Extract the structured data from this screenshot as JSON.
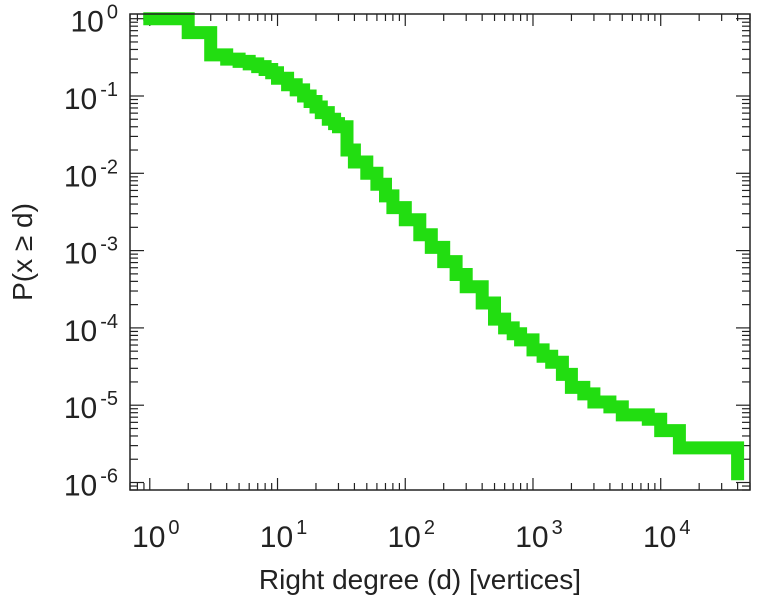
{
  "chart_data": {
    "type": "line",
    "title": "",
    "xlabel": "Right degree (d) [vertices]",
    "ylabel": "P(x ≥ d)",
    "x_scale": "log",
    "y_scale": "log",
    "xlim": [
      0.7,
      50000
    ],
    "ylim": [
      8e-07,
      1.15
    ],
    "grid": false,
    "legend": "none",
    "x_ticks": [
      {
        "base": "10",
        "exp": "0",
        "value": 1
      },
      {
        "base": "10",
        "exp": "1",
        "value": 10
      },
      {
        "base": "10",
        "exp": "2",
        "value": 100
      },
      {
        "base": "10",
        "exp": "3",
        "value": 1000
      },
      {
        "base": "10",
        "exp": "4",
        "value": 10000
      }
    ],
    "y_ticks": [
      {
        "base": "10",
        "exp": "0",
        "value": 1
      },
      {
        "base": "10",
        "exp": "-1",
        "value": 0.1
      },
      {
        "base": "10",
        "exp": "-2",
        "value": 0.01
      },
      {
        "base": "10",
        "exp": "-3",
        "value": 0.001
      },
      {
        "base": "10",
        "exp": "-4",
        "value": 0.0001
      },
      {
        "base": "10",
        "exp": "-5",
        "value": 1e-05
      },
      {
        "base": "10",
        "exp": "-6",
        "value": 1e-06
      }
    ],
    "series": [
      {
        "color": "#22dd11",
        "step": true,
        "x": [
          1,
          2,
          3,
          4,
          5,
          6,
          7,
          8,
          9,
          10,
          12,
          14,
          16,
          18,
          20,
          22,
          25,
          28,
          30,
          35,
          40,
          50,
          60,
          70,
          80,
          100,
          130,
          160,
          200,
          250,
          300,
          400,
          500,
          600,
          700,
          800,
          1000,
          1200,
          1400,
          1700,
          2000,
          2500,
          3000,
          4000,
          5000,
          6000,
          8000,
          10000,
          14000,
          40000
        ],
        "y": [
          1.0,
          0.66,
          0.34,
          0.3,
          0.28,
          0.26,
          0.24,
          0.22,
          0.2,
          0.17,
          0.14,
          0.12,
          0.1,
          0.085,
          0.072,
          0.061,
          0.05,
          0.044,
          0.04,
          0.02,
          0.014,
          0.01,
          0.0072,
          0.0051,
          0.0036,
          0.0025,
          0.0016,
          0.0011,
          0.00072,
          0.00049,
          0.00034,
          0.00021,
          0.00013,
          0.0001,
          8.4e-05,
          7e-05,
          5.2e-05,
          4.3e-05,
          3.6e-05,
          2.5e-05,
          1.7e-05,
          1.4e-05,
          1.1e-05,
          9.5e-06,
          7.5e-06,
          7.5e-06,
          6.6e-06,
          4.7e-06,
          2.8e-06,
          1.3e-06
        ]
      }
    ]
  }
}
